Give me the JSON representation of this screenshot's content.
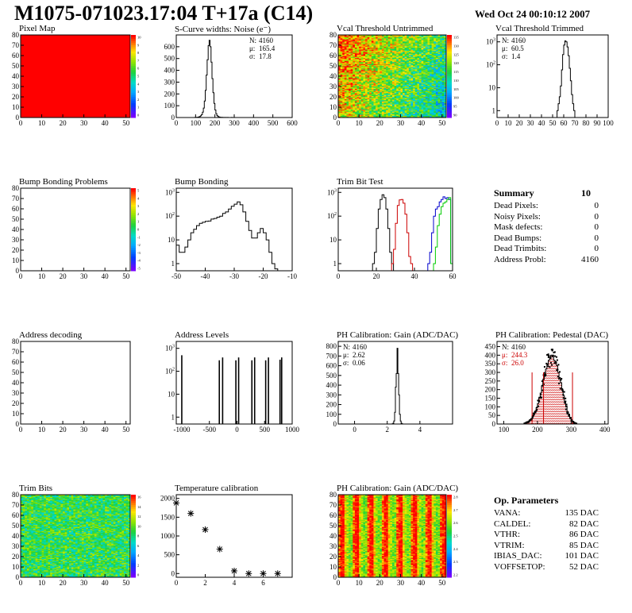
{
  "page": {
    "title": "M1075-071023.17:04 T+17a (C14)",
    "timestamp": "Wed Oct 24 00:10:12 2007"
  },
  "colors": {
    "pixel_map": "#ff0000",
    "trim_bit_series": [
      "#000000",
      "#cc0000",
      "#0000cc",
      "#00cc00"
    ],
    "pedestal_overlay": "#cc0000"
  },
  "chart_data": [
    {
      "id": "pixel_map",
      "type": "heatmap",
      "title": "Pixel Map",
      "xlim": [
        0,
        52
      ],
      "ylim": [
        0,
        80
      ],
      "xticks": [
        0,
        10,
        20,
        30,
        40,
        50
      ],
      "yticks": [
        0,
        10,
        20,
        30,
        40,
        50,
        60,
        70,
        80
      ],
      "pattern": "uniform",
      "fill": "#ff0000",
      "colorbar": {
        "ticks": [
          "10",
          "9",
          "8",
          "7",
          "6",
          "5",
          "4",
          "3",
          "2",
          "1",
          "0"
        ]
      }
    },
    {
      "id": "scurve",
      "type": "histogram",
      "title": "S-Curve widths: Noise (e⁻)",
      "xlim": [
        0,
        600
      ],
      "ylim": [
        0,
        700
      ],
      "xticks": [
        0,
        100,
        200,
        300,
        400,
        500,
        600
      ],
      "yticks": [
        0,
        100,
        200,
        300,
        400,
        500,
        600
      ],
      "stats": [
        {
          "label": "N:",
          "value": "4160"
        },
        {
          "label": "μ:",
          "value": "165.4"
        },
        {
          "label": "σ:",
          "value": "17.8"
        }
      ],
      "bins": {
        "start": 90,
        "width": 5,
        "values": [
          0,
          1,
          2,
          2,
          3,
          5,
          8,
          14,
          24,
          45,
          80,
          140,
          230,
          360,
          490,
          610,
          655,
          600,
          470,
          330,
          210,
          120,
          64,
          33,
          16,
          8,
          5,
          3,
          2,
          2,
          1,
          1,
          1,
          1,
          0,
          1,
          0,
          0,
          0,
          1,
          0,
          0
        ]
      }
    },
    {
      "id": "vcal_untrimmed",
      "type": "heatmap",
      "title": "Vcal Threshold Untrimmed",
      "xlim": [
        0,
        52
      ],
      "ylim": [
        0,
        80
      ],
      "xticks": [
        0,
        10,
        20,
        30,
        40,
        50
      ],
      "yticks": [
        0,
        10,
        20,
        30,
        40,
        50,
        60,
        70,
        80
      ],
      "pattern": "gradient-diagonal",
      "palette": "rainbow",
      "colorbar": {
        "ticks": [
          "135",
          "130",
          "125",
          "120",
          "115",
          "110",
          "105",
          "100",
          "95",
          "90"
        ]
      }
    },
    {
      "id": "vcal_trimmed",
      "type": "histogram",
      "title": "Vcal Threshold Trimmed",
      "log": true,
      "xlim": [
        0,
        100
      ],
      "ylim": [
        0.5,
        2000
      ],
      "xticks": [
        0,
        10,
        20,
        30,
        40,
        50,
        60,
        70,
        80,
        90,
        100
      ],
      "yticks": [
        1,
        10,
        100,
        1000
      ],
      "stats": [
        {
          "label": "N:",
          "value": "4160"
        },
        {
          "label": "μ:",
          "value": "60.5"
        },
        {
          "label": "σ:",
          "value": "1.4"
        }
      ],
      "bins": {
        "start": 54,
        "width": 1,
        "values": [
          1,
          2,
          4,
          12,
          60,
          280,
          720,
          1100,
          1000,
          600,
          250,
          70,
          20,
          5,
          2,
          1
        ]
      }
    },
    {
      "id": "bump_problems",
      "type": "heatmap",
      "title": "Bump Bonding Problems",
      "xlim": [
        0,
        52
      ],
      "ylim": [
        0,
        80
      ],
      "xticks": [
        0,
        10,
        20,
        30,
        40,
        50
      ],
      "yticks": [
        0,
        10,
        20,
        30,
        40,
        50,
        60,
        70,
        80
      ],
      "pattern": "empty",
      "colorbar": {
        "ticks": [
          "5",
          "4",
          "3",
          "2",
          "1",
          "0",
          "-1",
          "-2",
          "-3",
          "-4",
          "-5"
        ]
      }
    },
    {
      "id": "bump_bonding",
      "type": "histogram",
      "title": "Bump Bonding",
      "log": true,
      "xlim": [
        -50,
        -10
      ],
      "ylim": [
        0.5,
        1500
      ],
      "xticks": [
        -50,
        -40,
        -30,
        -20,
        -10
      ],
      "yticks": [
        1,
        10,
        100,
        1000
      ],
      "bins": {
        "start": -50,
        "width": 1,
        "values": [
          6,
          3,
          3,
          5,
          10,
          20,
          28,
          40,
          50,
          55,
          60,
          62,
          75,
          80,
          90,
          100,
          130,
          150,
          200,
          260,
          320,
          400,
          300,
          150,
          60,
          25,
          12,
          12,
          20,
          30,
          20,
          10,
          3,
          1,
          0.6
        ]
      }
    },
    {
      "id": "trim_bit_test",
      "type": "histogram",
      "title": "Trim Bit Test",
      "log": true,
      "xlim": [
        0,
        60
      ],
      "ylim": [
        0.5,
        1500
      ],
      "xticks": [
        0,
        20,
        40,
        60
      ],
      "yticks": [
        1,
        10,
        100,
        1000
      ],
      "series": [
        {
          "start": 18,
          "width": 1,
          "values": [
            1,
            3,
            30,
            200,
            500,
            800,
            600,
            200,
            30,
            3,
            1
          ],
          "color": "#000000"
        },
        {
          "start": 28,
          "width": 1,
          "values": [
            1,
            4,
            50,
            280,
            480,
            500,
            350,
            120,
            20,
            2,
            1
          ],
          "color": "#cc0000"
        },
        {
          "start": 47,
          "width": 1,
          "values": [
            1,
            3,
            20,
            100,
            200,
            250,
            400,
            500,
            650,
            550,
            600,
            500,
            1
          ],
          "color": "#0000cc"
        },
        {
          "start": 50,
          "width": 1,
          "values": [
            1,
            5,
            40,
            120,
            250,
            350,
            400,
            500,
            600,
            1
          ],
          "color": "#00cc00"
        }
      ]
    },
    {
      "id": "address_decoding",
      "type": "heatmap",
      "title": "Address decoding",
      "xlim": [
        0,
        52
      ],
      "ylim": [
        0,
        80
      ],
      "xticks": [
        0,
        10,
        20,
        30,
        40,
        50
      ],
      "yticks": [
        0,
        10,
        20,
        30,
        40,
        50,
        60,
        70,
        80
      ],
      "pattern": "empty"
    },
    {
      "id": "address_levels",
      "type": "histogram",
      "title": "Address Levels",
      "log": true,
      "xlim": [
        -1100,
        1000
      ],
      "ylim": [
        0.5,
        2000
      ],
      "xticks": [
        -1000,
        -500,
        0,
        500,
        1000
      ],
      "yticks": [
        1,
        10,
        100,
        1000
      ],
      "spikes": [
        {
          "x": -1000,
          "y": 500
        },
        {
          "x": -320,
          "y": 300
        },
        {
          "x": -260,
          "y": 400
        },
        {
          "x": -20,
          "y": 300
        },
        {
          "x": 30,
          "y": 400
        },
        {
          "x": 270,
          "y": 300
        },
        {
          "x": 320,
          "y": 400
        },
        {
          "x": 520,
          "y": 300
        },
        {
          "x": 570,
          "y": 400
        },
        {
          "x": 780,
          "y": 320
        },
        {
          "x": 810,
          "y": 400
        }
      ]
    },
    {
      "id": "ph_gain_hist",
      "type": "histogram",
      "title": "PH Calibration: Gain (ADC/DAC)",
      "xlim": [
        -1,
        6
      ],
      "ylim": [
        0,
        850
      ],
      "xticks": [
        0,
        2,
        4
      ],
      "yticks": [
        0,
        100,
        200,
        300,
        400,
        500,
        600,
        700,
        800
      ],
      "stats": [
        {
          "label": "N:",
          "value": "4160"
        },
        {
          "label": "μ:",
          "value": "2.62"
        },
        {
          "label": "σ:",
          "value": "0.06"
        }
      ],
      "bins": {
        "start": 2.3,
        "width": 0.05,
        "values": [
          2,
          8,
          30,
          120,
          380,
          520,
          780,
          520,
          300,
          100,
          30,
          8,
          2
        ]
      }
    },
    {
      "id": "ph_pedestal",
      "type": "histogram",
      "title": "PH Calibration: Pedestal (DAC)",
      "xlim": [
        80,
        410
      ],
      "ylim": [
        0,
        480
      ],
      "xticks": [
        100,
        200,
        300,
        400
      ],
      "yticks": [
        0,
        50,
        100,
        150,
        200,
        250,
        300,
        350,
        400,
        450
      ],
      "stats": [
        {
          "label": "N:",
          "value": "4160"
        },
        {
          "label": "μ:",
          "value": "244.3",
          "color": "#cc0000"
        },
        {
          "label": "σ:",
          "value": "26.0",
          "color": "#cc0000"
        }
      ],
      "bins": {
        "start": 160,
        "width": 4,
        "values": [
          3,
          6,
          10,
          14,
          22,
          30,
          42,
          55,
          75,
          95,
          120,
          150,
          180,
          220,
          260,
          290,
          320,
          350,
          370,
          380,
          400,
          390,
          370,
          360,
          340,
          300,
          270,
          240,
          200,
          165,
          130,
          100,
          70,
          50,
          35,
          22,
          12,
          6,
          3
        ]
      },
      "markers": [
        184,
        218,
        304
      ]
    },
    {
      "id": "trim_bits",
      "type": "heatmap",
      "title": "Trim Bits",
      "xlim": [
        0,
        52
      ],
      "ylim": [
        0,
        80
      ],
      "xticks": [
        0,
        10,
        20,
        30,
        40,
        50
      ],
      "yticks": [
        0,
        10,
        20,
        30,
        40,
        50,
        60,
        70,
        80
      ],
      "pattern": "noise-green",
      "palette": "rainbow",
      "colorbar": {
        "ticks": [
          "16",
          "14",
          "12",
          "10",
          "8",
          "6",
          "4",
          "2",
          "0"
        ]
      }
    },
    {
      "id": "temperature_calibration",
      "type": "scatter",
      "title": "Temperature calibration",
      "xlim": [
        0,
        8
      ],
      "ylim": [
        -100,
        2100
      ],
      "xticks": [
        0,
        2,
        4,
        6
      ],
      "yticks": [
        0,
        500,
        1000,
        1500,
        2000
      ],
      "x": [
        0,
        1,
        2,
        3,
        4,
        5,
        6,
        7
      ],
      "y": [
        1880,
        1600,
        1170,
        650,
        70,
        0,
        0,
        0
      ]
    },
    {
      "id": "ph_gain_map",
      "type": "heatmap",
      "title": "PH Calibration: Gain (ADC/DAC)",
      "xlim": [
        0,
        52
      ],
      "ylim": [
        0,
        80
      ],
      "xticks": [
        0,
        10,
        20,
        30,
        40,
        50
      ],
      "yticks": [
        0,
        10,
        20,
        30,
        40,
        50,
        60,
        70,
        80
      ],
      "pattern": "columns-warm",
      "palette": "rainbow",
      "colorbar": {
        "ticks": [
          "2.8",
          "2.7",
          "2.6",
          "2.5",
          "2.4",
          "2.3",
          "2.2"
        ]
      }
    }
  ],
  "summary": {
    "title": "Summary",
    "total": "10",
    "rows": [
      {
        "label": "Dead Pixels:",
        "value": "0"
      },
      {
        "label": "Noisy Pixels:",
        "value": "0"
      },
      {
        "label": "Mask defects:",
        "value": "0"
      },
      {
        "label": "Dead Bumps:",
        "value": "0"
      },
      {
        "label": "Dead Trimbits:",
        "value": "0"
      },
      {
        "label": "Address Probl:",
        "value": "4160"
      }
    ]
  },
  "op_params": {
    "title": "Op. Parameters",
    "rows": [
      {
        "label": "VANA:",
        "value": "135 DAC"
      },
      {
        "label": "CALDEL:",
        "value": "82 DAC"
      },
      {
        "label": "VTHR:",
        "value": "86 DAC"
      },
      {
        "label": "VTRIM:",
        "value": "85 DAC"
      },
      {
        "label": "IBIAS_DAC:",
        "value": "101 DAC"
      },
      {
        "label": "VOFFSETOP:",
        "value": "52 DAC"
      }
    ]
  }
}
